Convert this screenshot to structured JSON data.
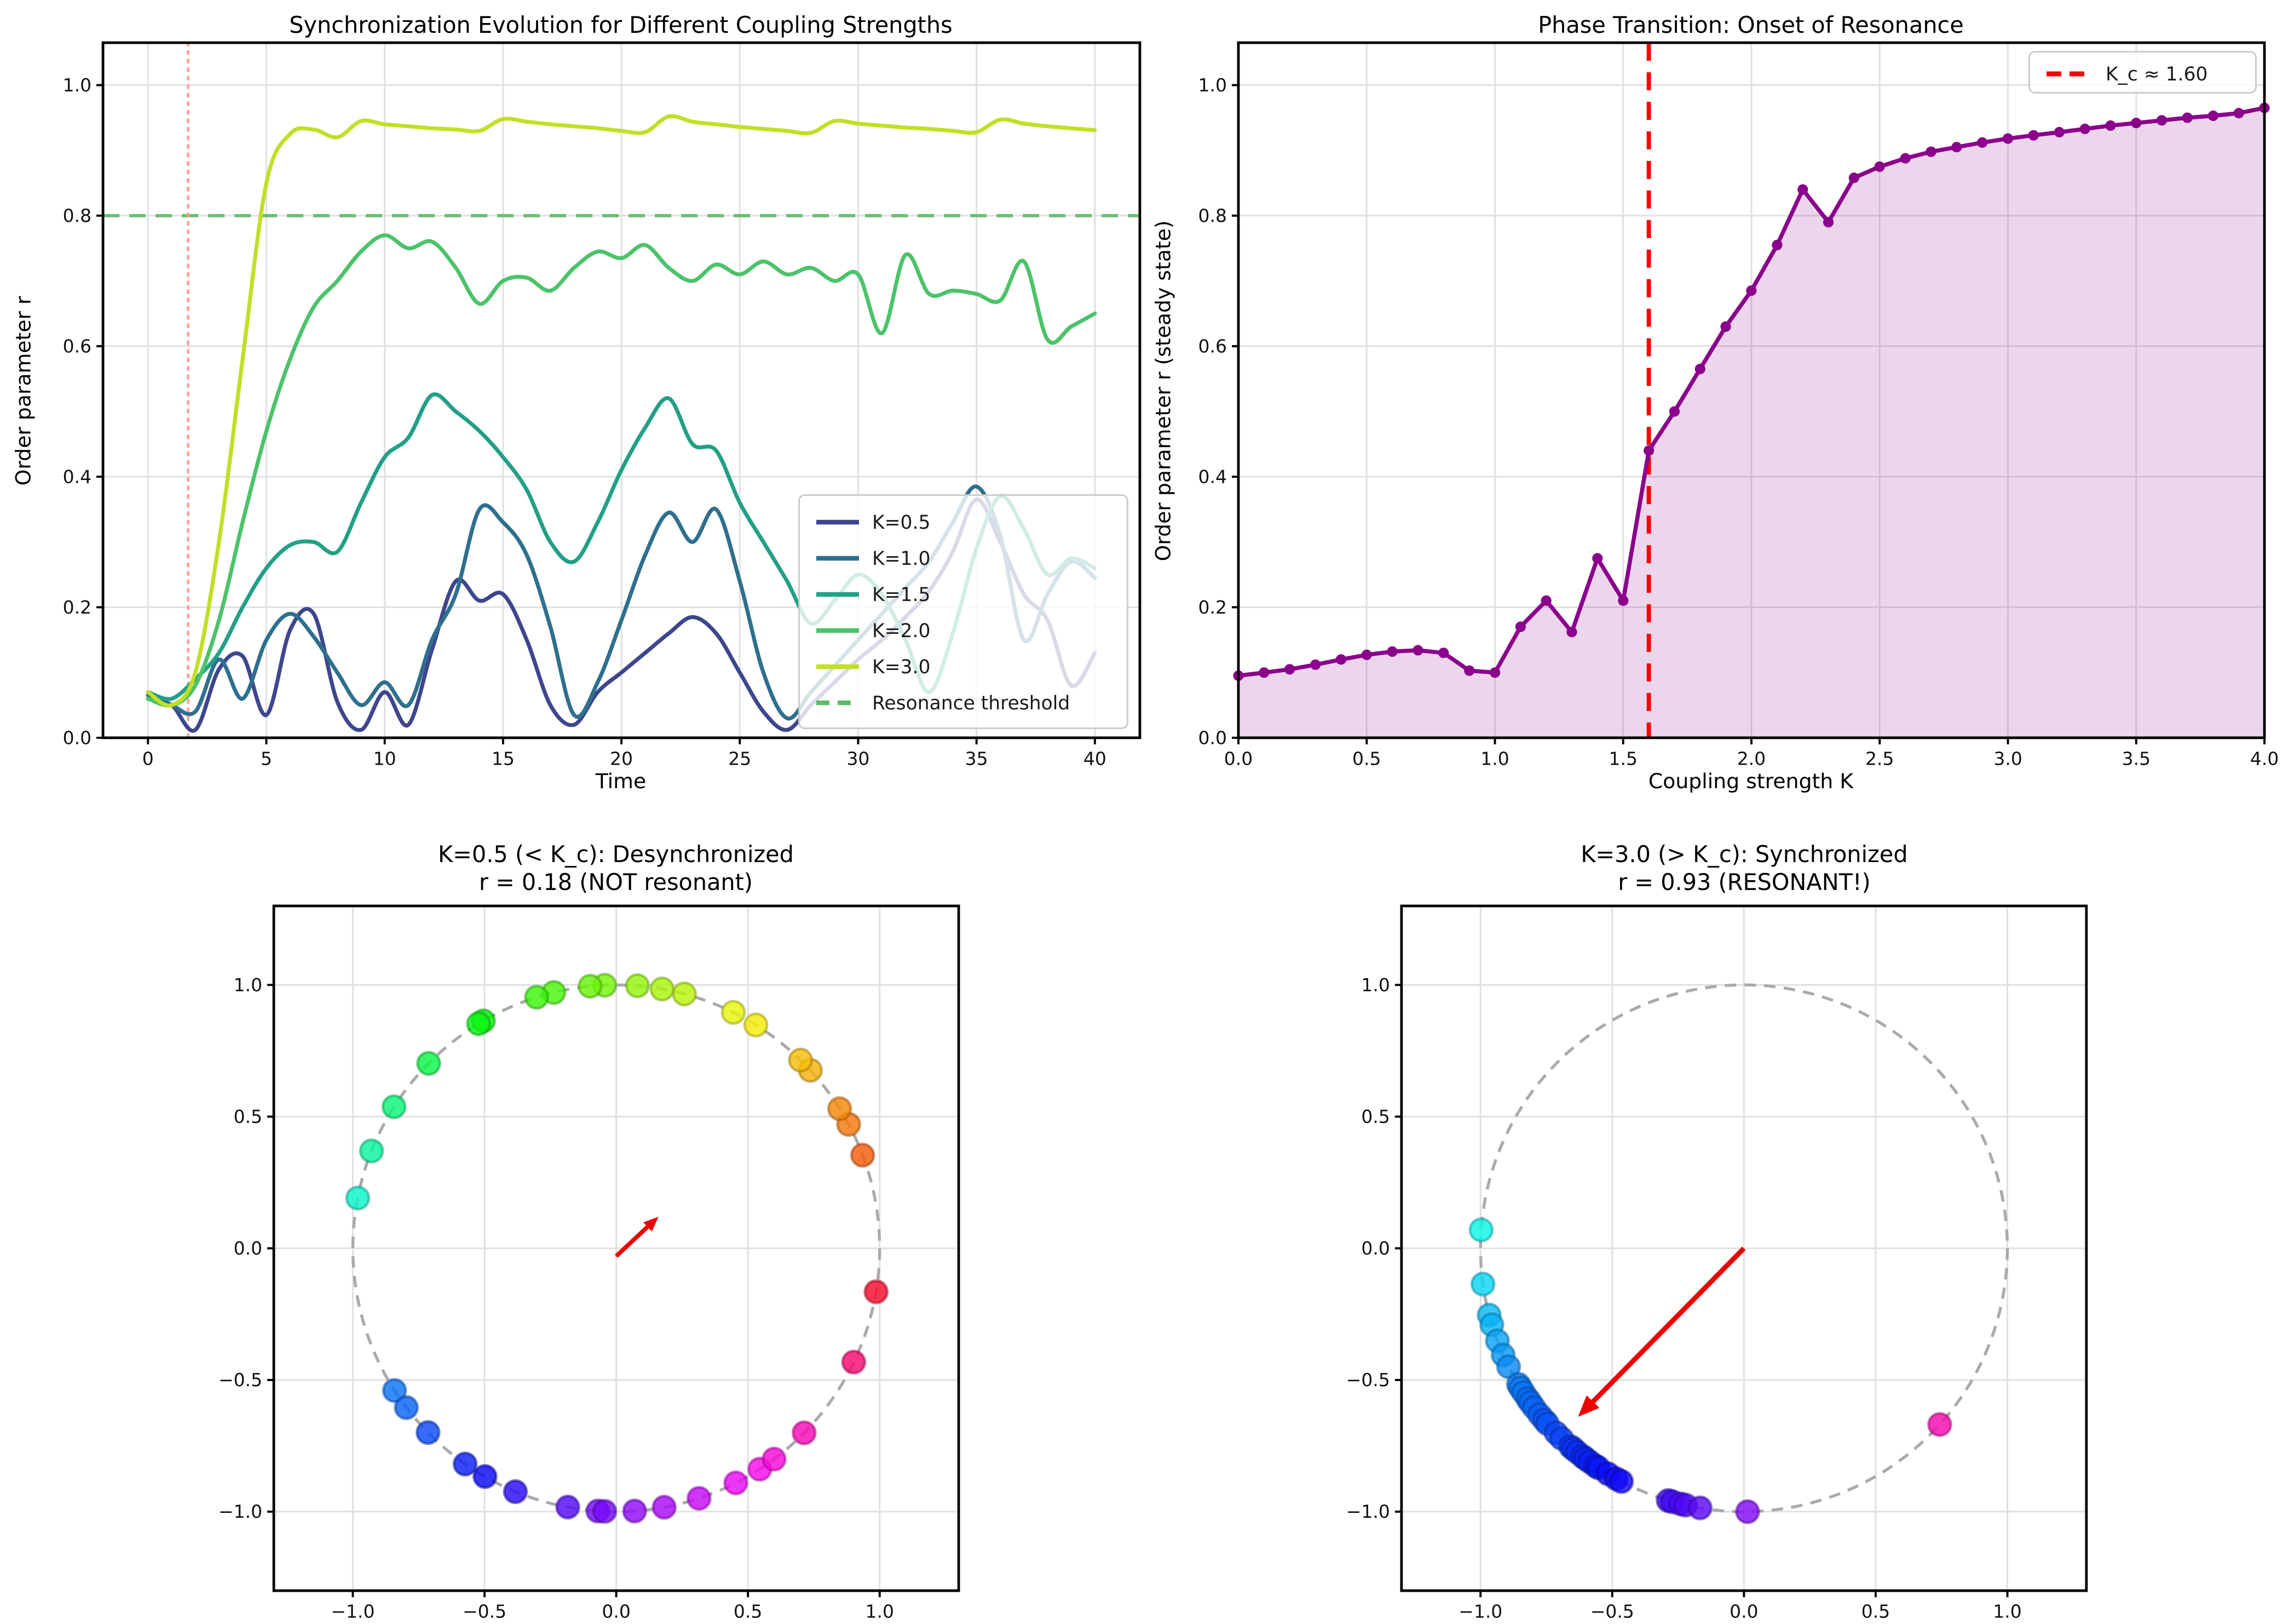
{
  "figure": {
    "background": "#ffffff",
    "layout": "2x2 grid of matplotlib-style subplots"
  },
  "chart_data": [
    {
      "id": "sync_evolution",
      "type": "line",
      "title": "Synchronization Evolution for Different Coupling Strengths",
      "xlabel": "Time",
      "ylabel": "Order parameter r",
      "xlim": [
        -1.9,
        41.9
      ],
      "ylim": [
        0,
        1.065
      ],
      "grid": true,
      "legend_position": "lower right",
      "xticks": {
        "values": [
          0,
          5,
          10,
          15,
          20,
          25,
          30,
          35,
          40
        ],
        "labels": [
          "0",
          "5",
          "10",
          "15",
          "20",
          "25",
          "30",
          "35",
          "40"
        ]
      },
      "yticks": {
        "values": [
          0,
          0.2,
          0.4,
          0.6,
          0.8,
          1.0
        ],
        "labels": [
          "0.0",
          "0.2",
          "0.4",
          "0.6",
          "0.8",
          "1.0"
        ]
      },
      "x": [
        0,
        1,
        2,
        3,
        4,
        5,
        6,
        7,
        8,
        9,
        10,
        11,
        12,
        13,
        14,
        15,
        16,
        17,
        18,
        19,
        20,
        21,
        22,
        23,
        24,
        25,
        26,
        27,
        28,
        29,
        30,
        31,
        32,
        33,
        34,
        35,
        36,
        37,
        38,
        39,
        40
      ],
      "series": [
        {
          "name": "K=0.5",
          "color": "#3d468d",
          "values": [
            0.06,
            0.05,
            0.012,
            0.105,
            0.125,
            0.035,
            0.165,
            0.19,
            0.055,
            0.012,
            0.07,
            0.02,
            0.135,
            0.24,
            0.21,
            0.22,
            0.15,
            0.05,
            0.02,
            0.07,
            0.1,
            0.13,
            0.16,
            0.185,
            0.16,
            0.1,
            0.04,
            0.012,
            0.05,
            0.085,
            0.12,
            0.15,
            0.185,
            0.225,
            0.285,
            0.365,
            0.3,
            0.22,
            0.18,
            0.08,
            0.13
          ]
        },
        {
          "name": "K=1.0",
          "color": "#2e6f8e",
          "values": [
            0.065,
            0.05,
            0.04,
            0.12,
            0.06,
            0.15,
            0.19,
            0.155,
            0.1,
            0.05,
            0.085,
            0.05,
            0.15,
            0.22,
            0.35,
            0.33,
            0.28,
            0.17,
            0.035,
            0.085,
            0.18,
            0.28,
            0.345,
            0.3,
            0.35,
            0.24,
            0.1,
            0.03,
            0.07,
            0.11,
            0.15,
            0.19,
            0.23,
            0.27,
            0.33,
            0.385,
            0.31,
            0.15,
            0.22,
            0.27,
            0.245
          ]
        },
        {
          "name": "K=1.5",
          "color": "#21a087",
          "values": [
            0.07,
            0.06,
            0.09,
            0.13,
            0.2,
            0.26,
            0.295,
            0.3,
            0.285,
            0.36,
            0.43,
            0.46,
            0.525,
            0.5,
            0.47,
            0.43,
            0.38,
            0.3,
            0.27,
            0.33,
            0.41,
            0.475,
            0.52,
            0.45,
            0.44,
            0.36,
            0.3,
            0.24,
            0.175,
            0.21,
            0.25,
            0.22,
            0.15,
            0.07,
            0.16,
            0.29,
            0.37,
            0.32,
            0.25,
            0.275,
            0.26
          ]
        },
        {
          "name": "K=2.0",
          "color": "#4cc36a",
          "values": [
            0.06,
            0.05,
            0.08,
            0.18,
            0.33,
            0.47,
            0.58,
            0.66,
            0.7,
            0.745,
            0.77,
            0.75,
            0.76,
            0.72,
            0.665,
            0.7,
            0.705,
            0.685,
            0.72,
            0.745,
            0.735,
            0.755,
            0.72,
            0.7,
            0.725,
            0.71,
            0.73,
            0.71,
            0.72,
            0.7,
            0.71,
            0.62,
            0.74,
            0.68,
            0.685,
            0.68,
            0.67,
            0.73,
            0.61,
            0.63,
            0.65
          ]
        },
        {
          "name": "K=3.0",
          "color": "#c2df25",
          "values": [
            0.07,
            0.05,
            0.1,
            0.3,
            0.58,
            0.85,
            0.925,
            0.932,
            0.92,
            0.945,
            0.94,
            0.937,
            0.934,
            0.932,
            0.93,
            0.948,
            0.944,
            0.94,
            0.937,
            0.934,
            0.93,
            0.928,
            0.952,
            0.944,
            0.94,
            0.936,
            0.933,
            0.93,
            0.927,
            0.945,
            0.941,
            0.938,
            0.935,
            0.933,
            0.93,
            0.928,
            0.947,
            0.941,
            0.937,
            0.934,
            0.931
          ]
        }
      ],
      "threshold": {
        "y": 0.8,
        "label": "Resonance threshold",
        "color": "#5fbb68",
        "style": "dashed"
      },
      "time_marker": {
        "x": 1.7,
        "color": "#ff9b8f",
        "style": "dotted"
      }
    },
    {
      "id": "phase_transition",
      "type": "line",
      "title": "Phase Transition: Onset of Resonance",
      "xlabel": "Coupling strength K",
      "ylabel": "Order parameter r (steady state)",
      "xlim": [
        0,
        4
      ],
      "ylim": [
        0,
        1.065
      ],
      "grid": true,
      "legend_position": "upper right",
      "xticks": {
        "values": [
          0,
          0.5,
          1,
          1.5,
          2,
          2.5,
          3,
          3.5,
          4
        ],
        "labels": [
          "0.0",
          "0.5",
          "1.0",
          "1.5",
          "2.0",
          "2.5",
          "3.0",
          "3.5",
          "4.0"
        ]
      },
      "yticks": {
        "values": [
          0,
          0.2,
          0.4,
          0.6,
          0.8,
          1.0
        ],
        "labels": [
          "0.0",
          "0.2",
          "0.4",
          "0.6",
          "0.8",
          "1.0"
        ]
      },
      "line_color": "#8b008b",
      "fill_color": "rgba(139,0,139,0.16)",
      "marker": "circle",
      "x": [
        0.0,
        0.1,
        0.2,
        0.3,
        0.4,
        0.5,
        0.6,
        0.7,
        0.8,
        0.9,
        1.0,
        1.1,
        1.2,
        1.3,
        1.4,
        1.5,
        1.6,
        1.7,
        1.8,
        1.9,
        2.0,
        2.1,
        2.2,
        2.3,
        2.4,
        2.5,
        2.6,
        2.7,
        2.8,
        2.9,
        3.0,
        3.1,
        3.2,
        3.3,
        3.4,
        3.5,
        3.6,
        3.7,
        3.8,
        3.9,
        4.0
      ],
      "values": [
        0.095,
        0.1,
        0.105,
        0.112,
        0.12,
        0.127,
        0.132,
        0.134,
        0.13,
        0.103,
        0.1,
        0.17,
        0.21,
        0.162,
        0.275,
        0.21,
        0.44,
        0.5,
        0.565,
        0.63,
        0.685,
        0.755,
        0.84,
        0.79,
        0.858,
        0.875,
        0.888,
        0.898,
        0.905,
        0.912,
        0.918,
        0.923,
        0.928,
        0.933,
        0.938,
        0.942,
        0.946,
        0.95,
        0.953,
        0.957,
        0.965
      ],
      "critical_line": {
        "x": 1.6,
        "label": "K_c ≈ 1.60",
        "color": "#ff0000",
        "style": "dashed"
      }
    },
    {
      "id": "desynchronized_phases",
      "type": "scatter",
      "title": "K=0.5 (< K_c): Desynchronized",
      "subtitle": "r = 0.18 (NOT resonant)",
      "xlim": [
        -1.3,
        1.3
      ],
      "ylim": [
        -1.3,
        1.3
      ],
      "grid": true,
      "xticks": {
        "values": [
          -1,
          -0.5,
          0,
          0.5,
          1
        ],
        "labels": [
          "−1.0",
          "−0.5",
          "0.0",
          "0.5",
          "1.0"
        ]
      },
      "yticks": {
        "values": [
          -1,
          -0.5,
          0,
          0.5,
          1
        ],
        "labels": [
          "−1.0",
          "−0.5",
          "0.0",
          "0.5",
          "1.0"
        ]
      },
      "unit_circle": {
        "radius": 1,
        "color": "#aaaaaa",
        "style": "dashed"
      },
      "colormap": "hsv",
      "phase_angles_deg": [
        -9.5,
        20.7,
        28.1,
        32.0,
        42.5,
        45.6,
        58.0,
        63.6,
        75.0,
        80.0,
        85.4,
        92.5,
        95.7,
        103.7,
        107.6,
        120.3,
        121.5,
        135.4,
        147.5,
        158.3,
        169.0,
        212.7,
        217.2,
        224.4,
        235.0,
        240.1,
        247.5,
        259.4,
        266.0,
        267.5,
        274.0,
        280.5,
        288.3,
        297.0,
        303.0,
        306.8,
        315.5,
        334.4
      ],
      "order_parameter_arrow": {
        "x1": 0.0,
        "y1": -0.03,
        "x2": 0.16,
        "y2": 0.12,
        "color": "#ee0000"
      }
    },
    {
      "id": "synchronized_phases",
      "type": "scatter",
      "title": "K=3.0 (> K_c): Synchronized",
      "subtitle": "r = 0.93 (RESONANT!)",
      "xlim": [
        -1.3,
        1.3
      ],
      "ylim": [
        -1.3,
        1.3
      ],
      "grid": true,
      "xticks": {
        "values": [
          -1,
          -0.5,
          0,
          0.5,
          1
        ],
        "labels": [
          "−1.0",
          "−0.5",
          "0.0",
          "0.5",
          "1.0"
        ]
      },
      "yticks": {
        "values": [
          -1,
          -0.5,
          0,
          0.5,
          1
        ],
        "labels": [
          "−1.0",
          "−0.5",
          "0.0",
          "0.5",
          "1.0"
        ]
      },
      "unit_circle": {
        "radius": 1,
        "color": "#aaaaaa",
        "style": "dashed"
      },
      "colormap": "hsv",
      "phase_angles_deg": [
        176.0,
        187.8,
        194.7,
        196.9,
        200.6,
        203.9,
        206.7,
        211.1,
        212.0,
        213.2,
        214.8,
        215.8,
        217.2,
        219.1,
        220.7,
        221.8,
        224.5,
        226.2,
        228.8,
        229.6,
        230.7,
        232.2,
        233.0,
        234.2,
        235.7,
        236.5,
        238.9,
        241.0,
        242.3,
        253.3,
        254.2,
        256.0,
        257.2,
        260.4,
        270.8,
        318.0
      ],
      "order_parameter_arrow": {
        "x1": 0.0,
        "y1": 0.0,
        "x2": -0.63,
        "y2": -0.64,
        "color": "#ee0000"
      }
    }
  ]
}
